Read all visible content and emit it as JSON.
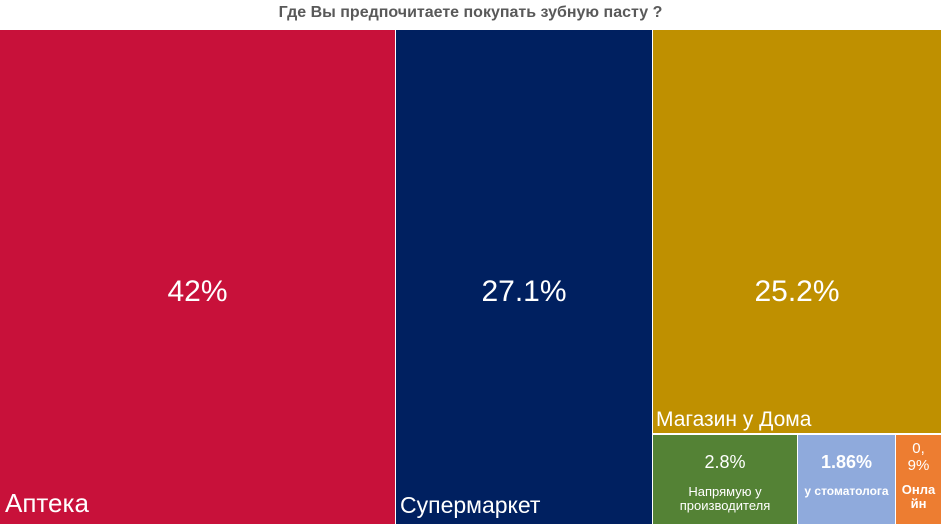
{
  "chart_data": {
    "type": "treemap",
    "title": "Где Вы предпочитаете покупать зубную пасту ?",
    "items": [
      {
        "label": "Аптека",
        "value_label": "42%",
        "value": 42,
        "color": "#c8113a"
      },
      {
        "label": "Супермаркет",
        "value_label": "27.1%",
        "value": 27.1,
        "color": "#002060"
      },
      {
        "label": "Магазин у Дома",
        "value_label": "25.2%",
        "value": 25.2,
        "color": "#bf9000"
      },
      {
        "label": "Напрямую у производителя",
        "value_label": "2.8%",
        "value": 2.8,
        "color": "#548235"
      },
      {
        "label": "у стоматолога",
        "value_label": "1.86%",
        "value": 1.86,
        "color": "#8faadc"
      },
      {
        "label": "Онлайн",
        "value_label": "0,9%",
        "value": 0.9,
        "color": "#ed7d31"
      }
    ]
  }
}
